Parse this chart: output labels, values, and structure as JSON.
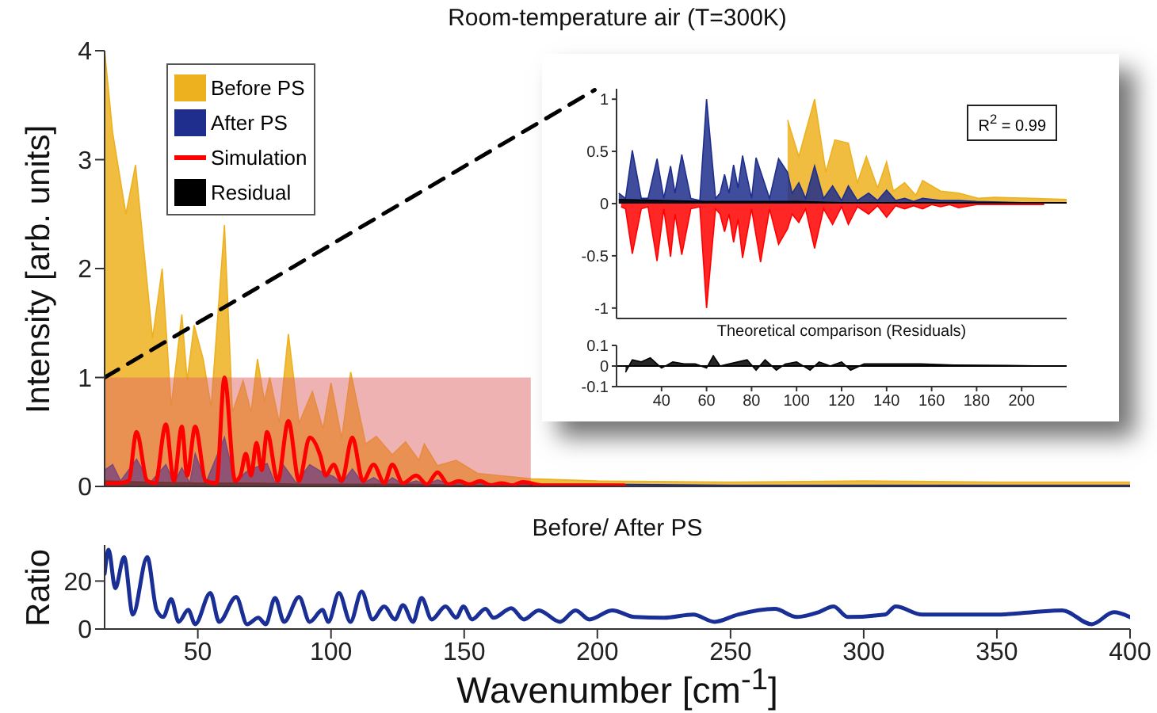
{
  "chart_data": [
    {
      "type": "area",
      "title": "Room-temperature air (T=300K)",
      "ylabel": "Intensity [arb. units]",
      "xlim": [
        15,
        400
      ],
      "xticks": [
        50,
        100,
        150,
        200,
        250,
        300,
        350,
        400
      ],
      "ylim": [
        0,
        4
      ],
      "yticks": [
        0,
        1,
        2,
        3,
        4
      ],
      "tick_labels": "y",
      "legend": "top left",
      "bands": [
        {
          "axis": "x",
          "from": 15,
          "to": 175,
          "color": "#e06666"
        }
      ],
      "series": [
        {
          "name": "Before PS",
          "color": "#edb120",
          "x": [
            15,
            18,
            23,
            26.6,
            33,
            36.6,
            40,
            44,
            46,
            48.6,
            52,
            55,
            60,
            63,
            67,
            70,
            72.4,
            75,
            77,
            80.6,
            84,
            88,
            93,
            97,
            100,
            104,
            107.4,
            113,
            117,
            123,
            128,
            133,
            135,
            140,
            147,
            155,
            163,
            175,
            200,
            250,
            300,
            350,
            400
          ],
          "values": [
            4.0,
            3.25,
            2.5,
            2.95,
            1.36,
            2.0,
            0.73,
            1.58,
            0.97,
            1.48,
            1.17,
            0.73,
            2.4,
            0.68,
            0.97,
            0.68,
            1.17,
            0.78,
            1.0,
            0.58,
            1.4,
            0.58,
            0.87,
            0.53,
            0.95,
            0.44,
            1.05,
            0.39,
            0.46,
            0.29,
            0.41,
            0.24,
            0.39,
            0.19,
            0.24,
            0.12,
            0.1,
            0.07,
            0.05,
            0.04,
            0.05,
            0.04,
            0.04
          ]
        },
        {
          "name": "After PS",
          "color": "#1f2e8c",
          "x": [
            15,
            18,
            21,
            27,
            32,
            38,
            41,
            44,
            47,
            49,
            53,
            60,
            64,
            68,
            71,
            76,
            79,
            82,
            87,
            92,
            96,
            101,
            104,
            108,
            112,
            116,
            120,
            123,
            127,
            132,
            136,
            140,
            145,
            148,
            152,
            156,
            165,
            175,
            200,
            250,
            300,
            350,
            400
          ],
          "values": [
            0.15,
            0.2,
            0.05,
            0.25,
            0.03,
            0.2,
            0.03,
            0.17,
            0.03,
            0.3,
            0.03,
            0.45,
            0.03,
            0.13,
            0.17,
            0.21,
            0.03,
            0.2,
            0.03,
            0.2,
            0.14,
            0.09,
            0.03,
            0.16,
            0.03,
            0.08,
            0.02,
            0.08,
            0.02,
            0.05,
            0.02,
            0.06,
            0.02,
            0.03,
            0.02,
            0.03,
            0.02,
            0.02,
            0.02,
            0.01,
            0.01,
            0.01,
            0.01
          ]
        },
        {
          "name": "Simulation",
          "type": "line",
          "color": "#ff0000",
          "x": [
            15,
            20,
            24,
            27,
            31,
            34,
            38,
            41,
            44,
            46,
            49,
            53,
            57,
            60,
            64,
            66,
            68,
            70,
            72,
            74,
            76,
            80,
            84,
            88,
            92,
            96,
            98,
            101,
            104,
            108,
            112,
            116,
            120,
            123,
            127,
            132,
            136,
            140,
            144,
            148,
            152,
            156,
            160,
            164,
            168,
            172,
            180,
            190,
            200,
            210
          ],
          "values": [
            0.03,
            0.03,
            0.05,
            0.5,
            0.05,
            0.03,
            0.57,
            0.05,
            0.55,
            0.1,
            0.55,
            0.05,
            0.03,
            1.0,
            0.05,
            0.1,
            0.3,
            0.1,
            0.4,
            0.15,
            0.5,
            0.05,
            0.6,
            0.05,
            0.45,
            0.28,
            0.1,
            0.2,
            0.05,
            0.45,
            0.05,
            0.2,
            0.03,
            0.2,
            0.03,
            0.1,
            0.02,
            0.13,
            0.02,
            0.05,
            0.02,
            0.05,
            0.01,
            0.03,
            0.01,
            0.04,
            0.01,
            0.01,
            0.01,
            0.01
          ]
        },
        {
          "name": "Residual",
          "color": "#000000",
          "x": [
            15,
            30,
            50,
            70,
            90,
            110,
            130,
            150,
            170,
            190,
            210
          ],
          "values": [
            0.05,
            0.04,
            0.03,
            0.03,
            0.02,
            0.02,
            0.02,
            0.01,
            0.01,
            0.01,
            0.01
          ]
        },
        {
          "type": "line",
          "line_style": "dashed",
          "color": "#000000",
          "x": [
            15,
            199
          ],
          "values": [
            1,
            3.64
          ]
        }
      ]
    },
    {
      "type": "area",
      "annotations": [
        "R$^{2}$ = 0.99"
      ],
      "xlim": [
        20,
        220
      ],
      "xticks": [
        40,
        60,
        80,
        100,
        120,
        140,
        160,
        180,
        200
      ],
      "ylim": [
        -1.1,
        1.1
      ],
      "yticks": [
        -1,
        -0.5,
        0,
        0.5,
        1
      ],
      "tick_labels": "y",
      "series": [
        {
          "color": "#edb120",
          "x": [
            96,
            101,
            108,
            113,
            117,
            123,
            127,
            131,
            136,
            140,
            143,
            148,
            153,
            156,
            164,
            172,
            181,
            188,
            204,
            220
          ],
          "values": [
            0.8,
            0.45,
            1.0,
            0.3,
            0.61,
            0.58,
            0.2,
            0.45,
            0.15,
            0.4,
            0.12,
            0.2,
            0.08,
            0.22,
            0.12,
            0.1,
            0.05,
            0.06,
            0.05,
            0.04
          ]
        },
        {
          "color": "#1f2e8c",
          "x": [
            21,
            24,
            27,
            31,
            34,
            38,
            41,
            44,
            46,
            49,
            53,
            57,
            60,
            64,
            66,
            68,
            70,
            72,
            74,
            76,
            80,
            82,
            88,
            92,
            96,
            98,
            101,
            104,
            108,
            112,
            116,
            120,
            123,
            127,
            132,
            136,
            140,
            144,
            148,
            152,
            156,
            164,
            172,
            180,
            200,
            220
          ],
          "values": [
            0.1,
            0.05,
            0.51,
            0.05,
            0.05,
            0.43,
            0.05,
            0.36,
            0.1,
            0.47,
            0.05,
            0.03,
            1.0,
            0.05,
            0.1,
            0.28,
            0.1,
            0.37,
            0.15,
            0.46,
            0.05,
            0.44,
            0.05,
            0.43,
            0.3,
            0.1,
            0.2,
            0.05,
            0.36,
            0.05,
            0.17,
            0.03,
            0.17,
            0.03,
            0.1,
            0.03,
            0.13,
            0.03,
            0.05,
            0.02,
            0.05,
            0.03,
            0.03,
            0.02,
            0.01,
            0.01
          ]
        },
        {
          "color": "#ff0000",
          "x": [
            22,
            24,
            27,
            31,
            34,
            38,
            41,
            44,
            46,
            49,
            53,
            57,
            60,
            64,
            66,
            68,
            70,
            72,
            74,
            76,
            80,
            84,
            88,
            92,
            96,
            98,
            101,
            104,
            108,
            112,
            116,
            120,
            123,
            127,
            132,
            136,
            140,
            144,
            148,
            152,
            156,
            160,
            164,
            168,
            172,
            180,
            190,
            200,
            210
          ],
          "values": [
            -0.03,
            -0.05,
            -0.48,
            -0.05,
            -0.03,
            -0.55,
            -0.05,
            -0.51,
            -0.1,
            -0.49,
            -0.05,
            -0.03,
            -1.0,
            -0.05,
            -0.1,
            -0.27,
            -0.1,
            -0.37,
            -0.15,
            -0.52,
            -0.05,
            -0.56,
            -0.05,
            -0.39,
            -0.24,
            -0.1,
            -0.18,
            -0.05,
            -0.43,
            -0.05,
            -0.2,
            -0.03,
            -0.2,
            -0.03,
            -0.1,
            -0.02,
            -0.13,
            -0.02,
            -0.05,
            -0.02,
            -0.05,
            -0.01,
            -0.03,
            -0.01,
            -0.04,
            -0.01,
            -0.01,
            -0.01,
            -0.01
          ]
        },
        {
          "color": "#000000",
          "x": [
            21,
            40,
            60,
            80,
            100,
            120,
            140,
            160,
            180,
            200,
            220
          ],
          "values": [
            0.04,
            0.03,
            0.02,
            0.02,
            0.02,
            0.01,
            0.01,
            0.01,
            0.01,
            0.01,
            0.01
          ]
        }
      ]
    },
    {
      "type": "area",
      "title": "Theoretical comparison (Residuals)",
      "xlim": [
        20,
        220
      ],
      "xticks": [
        40,
        60,
        80,
        100,
        120,
        140,
        160,
        180,
        200
      ],
      "ylim": [
        -0.1,
        0.1
      ],
      "yticks": [
        -0.1,
        0,
        0.1
      ],
      "ref_lines": [
        {
          "axis": "y",
          "value": 0,
          "color": "#000000"
        }
      ],
      "series": [
        {
          "color": "#000000",
          "x": [
            24,
            27,
            31,
            35,
            40,
            45,
            50,
            55,
            60,
            63,
            66,
            70,
            78,
            82,
            86,
            91,
            95,
            100,
            106,
            110,
            115,
            120,
            124,
            130,
            140,
            155,
            170,
            200,
            210
          ],
          "values": [
            -0.03,
            0.03,
            0.02,
            0.04,
            -0.01,
            0.02,
            0.01,
            0.01,
            -0.01,
            0.05,
            0.0,
            0.01,
            0.03,
            -0.02,
            0.03,
            -0.02,
            0.01,
            0.02,
            -0.02,
            0.02,
            0.0,
            0.02,
            -0.02,
            0.01,
            0.01,
            0.01,
            0.005,
            0.002,
            0.0
          ]
        }
      ]
    },
    {
      "type": "line",
      "title": "Before/ After PS",
      "xlabel": "Wavenumber [cm$^{-1}$]",
      "ylabel": "Ratio",
      "xlim": [
        15,
        400
      ],
      "xticks": [
        50,
        100,
        150,
        200,
        250,
        300,
        350,
        400
      ],
      "ylim": [
        0,
        35
      ],
      "yticks": [
        0,
        20
      ],
      "series": [
        {
          "color": "#1a2f96",
          "x": [
            15,
            16.5,
            19,
            22.3,
            25.6,
            31,
            34.5,
            37,
            40,
            42.8,
            46.4,
            49,
            54.7,
            58,
            64.4,
            68.5,
            72.7,
            75.5,
            79,
            82.4,
            88,
            92,
            96.8,
            99,
            103,
            107.3,
            111.5,
            115.6,
            120,
            124,
            127,
            130.8,
            134,
            137.8,
            143,
            147,
            149.7,
            153,
            158,
            161,
            167.7,
            172.4,
            178,
            186,
            191.8,
            197,
            205.6,
            214,
            225,
            236,
            244,
            252.7,
            266.6,
            274.9,
            283,
            288.7,
            294,
            308,
            312,
            322,
            335.8,
            349.6,
            363.5,
            374.5,
            385.6,
            393.9,
            400
          ],
          "values": [
            23,
            33,
            17,
            30,
            6,
            30,
            8,
            5,
            12.5,
            3,
            8,
            2,
            15,
            3,
            13.4,
            2,
            4.7,
            2,
            13,
            3,
            13.4,
            3,
            8,
            3,
            15,
            3,
            15.6,
            4,
            9.4,
            4,
            10,
            3,
            13,
            4,
            9.4,
            4.7,
            9.4,
            4,
            8.4,
            4.7,
            8.7,
            4,
            7.8,
            3,
            7.8,
            4,
            7.8,
            5,
            4.7,
            6,
            3,
            6,
            8.4,
            5,
            7,
            9.4,
            5,
            6,
            9.4,
            6,
            6,
            6,
            7,
            7.8,
            2,
            7,
            5
          ]
        }
      ]
    }
  ]
}
